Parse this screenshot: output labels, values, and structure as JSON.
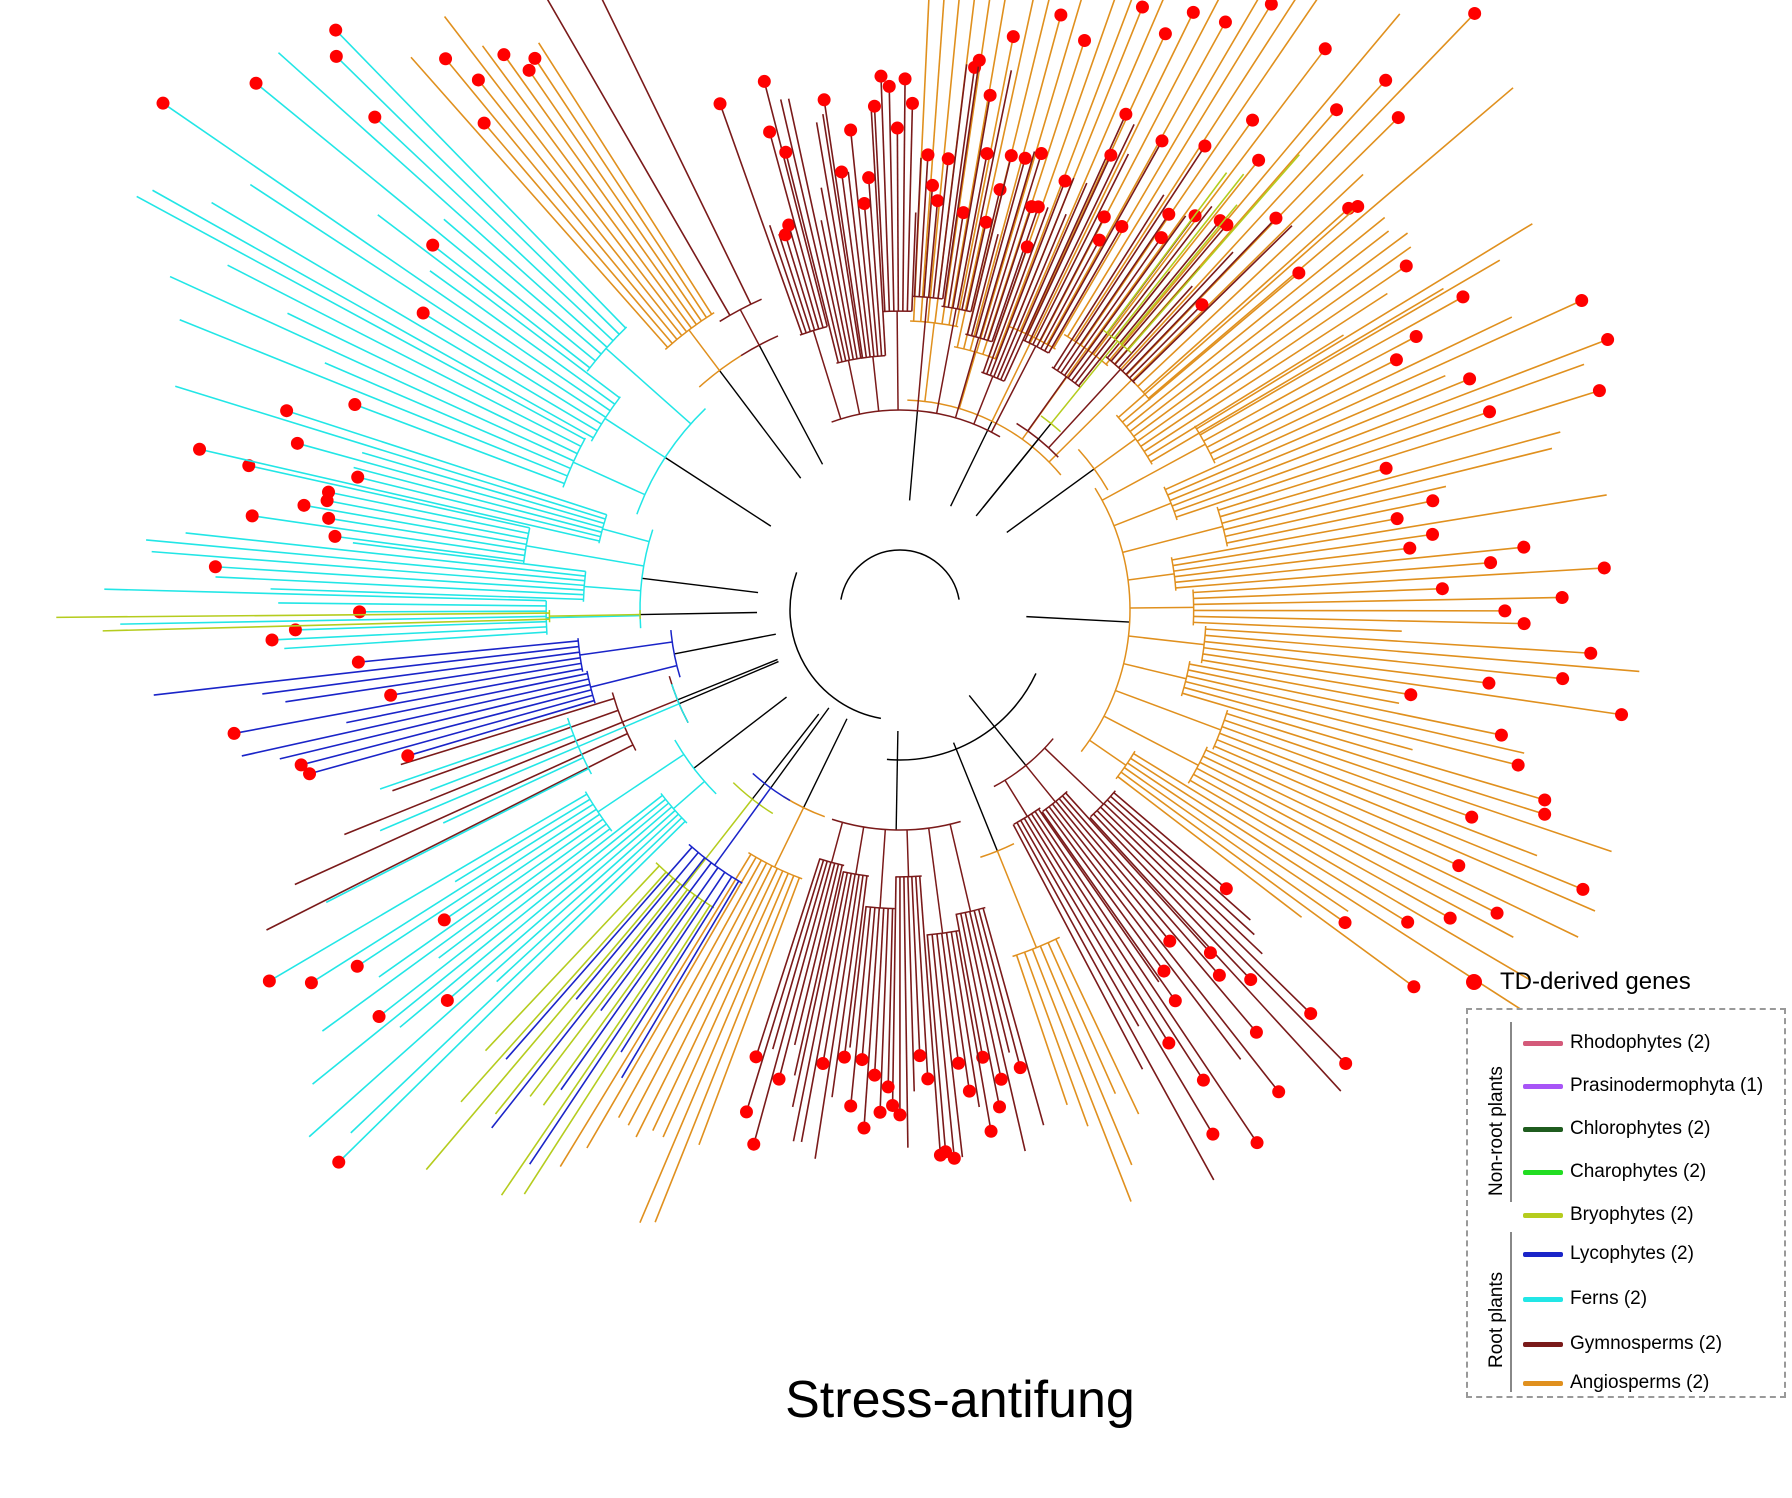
{
  "title": "Stress-antifung",
  "td_legend": {
    "label": "TD-derived genes",
    "color": "#ff0000"
  },
  "legend": {
    "groups": [
      {
        "label": "Non-root plants",
        "items": [
          {
            "label": "Rhodophytes (2)",
            "color": "#d45a7a"
          },
          {
            "label": "Prasinodermophyta (1)",
            "color": "#a855f7"
          },
          {
            "label": "Chlorophytes (2)",
            "color": "#1f5c1f"
          },
          {
            "label": "Charophytes (2)",
            "color": "#22dd22"
          },
          {
            "label": "Bryophytes (2)",
            "color": "#b5cc1e"
          }
        ]
      },
      {
        "label": "Root plants",
        "items": [
          {
            "label": "Lycophytes (2)",
            "color": "#1a24c8"
          },
          {
            "label": "Ferns (2)",
            "color": "#22e6e6"
          },
          {
            "label": "Gymnosperms (2)",
            "color": "#7a1a1a"
          },
          {
            "label": "Angiosperms (2)",
            "color": "#e0901e"
          }
        ]
      }
    ]
  },
  "colors": {
    "internal": "#000000",
    "lycophytes": "#1a24c8",
    "ferns": "#22e6e6",
    "gymnosperms": "#7a1a1a",
    "angiosperms": "#e0901e",
    "bryophytes": "#b5cc1e",
    "td_marker": "#ff0000"
  },
  "clades": [
    {
      "name": "Angiosperms",
      "color_key": "angiosperms"
    },
    {
      "name": "Gymnosperms",
      "color_key": "gymnosperms"
    },
    {
      "name": "Ferns",
      "color_key": "ferns"
    },
    {
      "name": "Lycophytes",
      "color_key": "lycophytes"
    },
    {
      "name": "Bryophytes",
      "color_key": "bryophytes"
    }
  ]
}
